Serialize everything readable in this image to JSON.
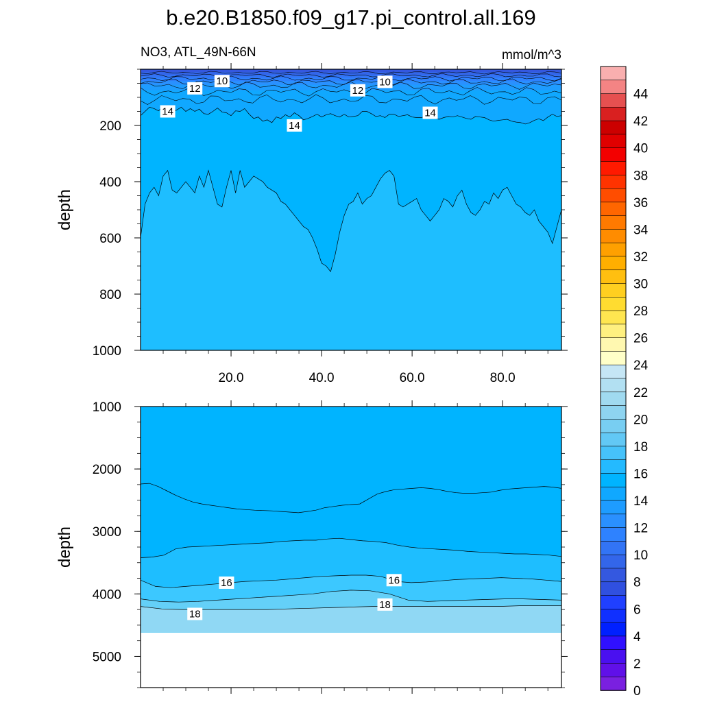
{
  "title": "b.e20.B1850.f09_g17.pi_control.all.169",
  "subtitle_left": "NO3, ATL_49N-66N",
  "subtitle_right": "mmol/m^3",
  "chart_data": [
    {
      "type": "heatmap",
      "panel": "upper",
      "ylabel": "depth",
      "xlabel": "",
      "xlim": [
        0,
        93
      ],
      "ylim": [
        1000,
        0
      ],
      "x_ticks": [
        "20.0",
        "40.0",
        "60.0",
        "80.0"
      ],
      "x_tick_values": [
        20,
        40,
        60,
        80
      ],
      "y_ticks": [
        "200",
        "400",
        "600",
        "800",
        "1000"
      ],
      "y_tick_values": [
        200,
        400,
        600,
        800,
        1000
      ],
      "contour_labels": [
        {
          "text": "10",
          "x": 18,
          "y": 42
        },
        {
          "text": "12",
          "x": 12,
          "y": 68
        },
        {
          "text": "12",
          "x": 48,
          "y": 75
        },
        {
          "text": "10",
          "x": 54,
          "y": 45
        },
        {
          "text": "14",
          "x": 6,
          "y": 150
        },
        {
          "text": "14",
          "x": 34,
          "y": 200
        },
        {
          "text": "14",
          "x": 64,
          "y": 155
        }
      ],
      "regions": [
        {
          "level": 14,
          "color": "#00b4ff"
        },
        {
          "level": 15,
          "color": "#1ebeff"
        }
      ],
      "contour_14_depth": [
        165,
        150,
        135,
        140,
        148,
        130,
        140,
        152,
        145,
        135,
        150,
        140,
        150,
        142,
        158,
        160,
        150,
        138,
        152,
        155,
        165,
        148,
        150,
        140,
        160,
        175,
        170,
        185,
        180,
        190,
        170,
        175,
        162,
        170,
        155,
        165,
        180,
        175,
        168,
        160,
        170,
        162,
        158,
        165,
        170,
        160,
        170,
        168,
        165,
        150,
        150,
        158,
        168,
        165,
        172,
        160,
        160,
        168,
        165,
        162,
        170,
        172,
        172,
        168,
        168,
        175,
        178,
        172,
        168,
        170,
        165,
        170,
        175,
        178,
        168,
        170,
        172,
        180,
        185,
        182,
        180,
        178,
        185,
        188,
        190,
        195,
        190,
        182,
        176,
        183,
        170,
        160,
        168,
        165
      ],
      "contour_15_depth": [
        600,
        480,
        440,
        420,
        450,
        380,
        360,
        430,
        440,
        420,
        400,
        420,
        440,
        380,
        420,
        360,
        420,
        480,
        490,
        420,
        360,
        440,
        360,
        420,
        400,
        380,
        390,
        400,
        420,
        430,
        440,
        470,
        480,
        500,
        520,
        540,
        560,
        570,
        600,
        640,
        690,
        700,
        720,
        660,
        580,
        520,
        480,
        470,
        440,
        480,
        460,
        450,
        420,
        390,
        370,
        360,
        380,
        480,
        490,
        480,
        470,
        460,
        500,
        520,
        540,
        520,
        500,
        460,
        470,
        490,
        450,
        430,
        480,
        510,
        520,
        500,
        470,
        480,
        440,
        460,
        430,
        420,
        450,
        480,
        490,
        510,
        520,
        500,
        540,
        560,
        580,
        620,
        560,
        500
      ]
    },
    {
      "type": "heatmap",
      "panel": "lower",
      "ylabel": "depth",
      "xlabel": "",
      "xlim": [
        0,
        93
      ],
      "ylim": [
        5500,
        1000
      ],
      "y_ticks": [
        "1000",
        "2000",
        "3000",
        "4000",
        "5000"
      ],
      "y_tick_values": [
        1000,
        2000,
        3000,
        4000,
        5000
      ],
      "bottom_depth": 4620,
      "contour_labels": [
        {
          "text": "16",
          "x": 19,
          "y": 3820
        },
        {
          "text": "16",
          "x": 56,
          "y": 3780
        },
        {
          "text": "18",
          "x": 12,
          "y": 4320
        },
        {
          "text": "18",
          "x": 54,
          "y": 4170
        }
      ],
      "regions": [
        {
          "level": 14,
          "color": "#00b4ff"
        },
        {
          "level": 15,
          "color": "#1ebeff"
        },
        {
          "level": 16,
          "color": "#3cc8ff"
        },
        {
          "level": 17,
          "color": "#64d0f8"
        },
        {
          "level": 18,
          "color": "#90d8f4"
        },
        {
          "level": 19,
          "color": "#a8ddf2"
        }
      ],
      "contour_15_depth": [
        2240,
        2230,
        2280,
        2350,
        2420,
        2480,
        2530,
        2560,
        2580,
        2600,
        2620,
        2640,
        2650,
        2660,
        2665,
        2670,
        2680,
        2690,
        2700,
        2680,
        2660,
        2620,
        2600,
        2580,
        2570,
        2560,
        2480,
        2400,
        2360,
        2330,
        2320,
        2310,
        2300,
        2310,
        2330,
        2360,
        2380,
        2390,
        2390,
        2380,
        2370,
        2340,
        2320,
        2310,
        2300,
        2290,
        2280,
        2290,
        2310
      ],
      "contour_16_depth": [
        3420,
        3410,
        3380,
        3280,
        3250,
        3240,
        3230,
        3220,
        3210,
        3200,
        3190,
        3180,
        3160,
        3150,
        3140,
        3140,
        3120,
        3110,
        3130,
        3150,
        3160,
        3180,
        3220,
        3250,
        3270,
        3280,
        3290,
        3300,
        3320,
        3330,
        3340,
        3350,
        3360,
        3360,
        3370,
        3380,
        3400
      ],
      "contour_17_depth": [
        3780,
        3880,
        3900,
        3880,
        3860,
        3840,
        3820,
        3800,
        3790,
        3780,
        3760,
        3740,
        3720,
        3710,
        3700,
        3700,
        3720,
        3800,
        3820,
        3810,
        3790,
        3770,
        3760,
        3750,
        3740,
        3750,
        3760,
        3780,
        3800
      ],
      "contour_18_depth": [
        4080,
        4120,
        4130,
        4120,
        4100,
        4080,
        4060,
        4040,
        4020,
        4000,
        3960,
        3940,
        3950,
        4000,
        4100,
        4120,
        4110,
        4100,
        4090,
        4080,
        4080,
        4090,
        4100
      ],
      "contour_19_depth": [
        4200,
        4240,
        4250,
        4250,
        4250,
        4250,
        4250,
        4240,
        4230,
        4220,
        4210,
        4200,
        4200,
        4200,
        4200,
        4200,
        4200,
        4200,
        4190,
        4190,
        4190
      ]
    }
  ],
  "colorbar": {
    "labels": [
      "44",
      "42",
      "40",
      "38",
      "36",
      "34",
      "32",
      "30",
      "28",
      "26",
      "24",
      "22",
      "20",
      "18",
      "16",
      "14",
      "12",
      "10",
      "8",
      "6",
      "4",
      "2",
      "0"
    ],
    "colors": [
      "#f9afaf",
      "#f48484",
      "#e65050",
      "#d92020",
      "#cc0000",
      "#e00000",
      "#f30000",
      "#ff1a00",
      "#ff3300",
      "#ff4d00",
      "#ff6600",
      "#ff7a00",
      "#ff8c00",
      "#ffa000",
      "#ffaf00",
      "#ffbf10",
      "#ffcf20",
      "#ffdc30",
      "#ffe650",
      "#fff080",
      "#fff8b0",
      "#ffffc8",
      "#c5e6f5",
      "#b2e0f2",
      "#a0daf0",
      "#8ed4f0",
      "#78cef2",
      "#62c8f5",
      "#46c2fa",
      "#24baff",
      "#00b4ff",
      "#10a8ff",
      "#1e9cff",
      "#2a90ff",
      "#2e82ff",
      "#3274f5",
      "#3366ea",
      "#3458e0",
      "#3050e0",
      "#2040ff",
      "#1030ff",
      "#0020ff",
      "#3010ff",
      "#4a10f0",
      "#6010e8",
      "#7a20e0"
    ]
  }
}
